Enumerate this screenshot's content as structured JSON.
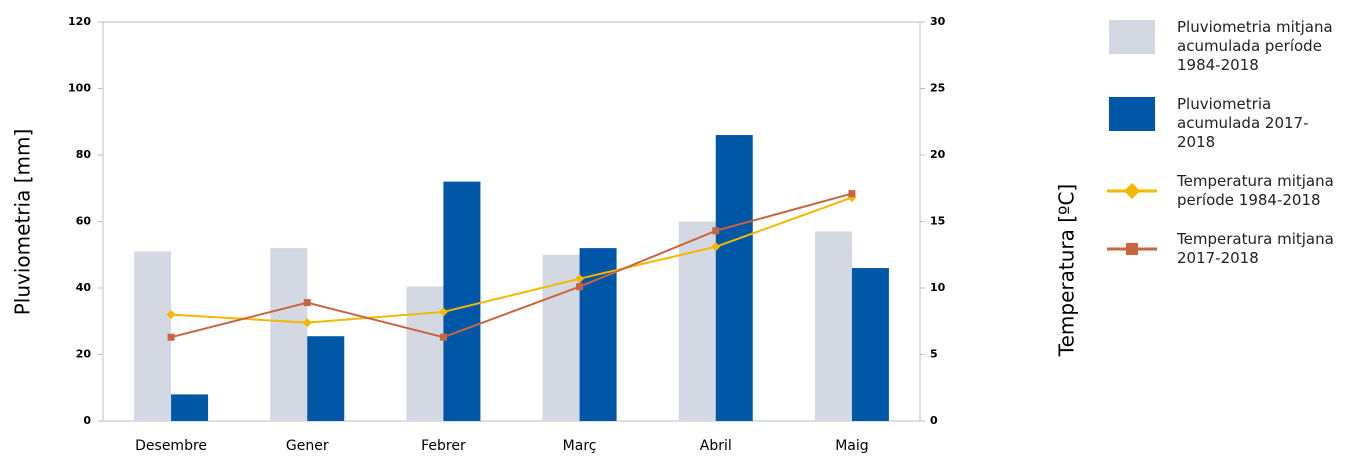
{
  "chart_data": {
    "type": "bar-line",
    "categories": [
      "Desembre",
      "Gener",
      "Febrer",
      "Març",
      "Abril",
      "Maig"
    ],
    "ylabel": "Pluviometria [mm]",
    "y2label": "Temperatura [ºC]",
    "ylim": [
      0,
      120
    ],
    "yticks": [
      0,
      20,
      40,
      60,
      80,
      100,
      120
    ],
    "y2lim": [
      0,
      30
    ],
    "y2ticks": [
      0,
      5,
      10,
      15,
      20,
      25,
      30
    ],
    "grid": false,
    "legend": "right",
    "series": [
      {
        "name": "Pluviometria mitjana acumulada període 1984-2018",
        "type": "bar",
        "color": "#d3d8e2",
        "values": [
          51,
          52,
          40.5,
          50,
          60,
          57
        ]
      },
      {
        "name": "Pluviometria acumulada 2017-2018",
        "type": "bar",
        "color": "#0057a8",
        "values": [
          8,
          25.5,
          72,
          52,
          86,
          46
        ]
      },
      {
        "name": "Temperatura mitjana període 1984-2018",
        "type": "line",
        "axis": "y2",
        "marker": "diamond",
        "color": "#f5b800",
        "values": [
          8.0,
          7.4,
          8.2,
          10.7,
          13.1,
          16.8
        ]
      },
      {
        "name": "Temperatura mitjana 2017-2018",
        "type": "line",
        "axis": "y2",
        "marker": "square",
        "color": "#c8653e",
        "values": [
          6.3,
          8.9,
          6.3,
          10.1,
          14.3,
          17.1
        ]
      }
    ]
  }
}
